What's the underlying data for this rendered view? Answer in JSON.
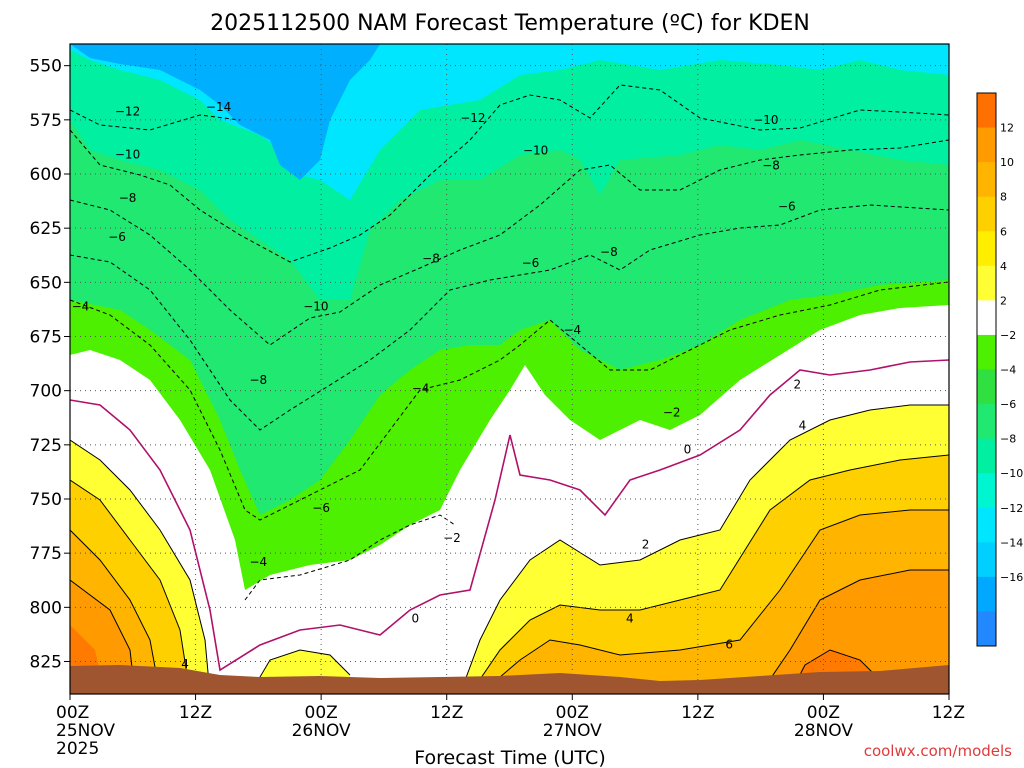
{
  "chart_data": {
    "type": "contour",
    "title": "2025112500 NAM Forecast Temperature (ºC) for KDEN",
    "xlabel": "Forecast Time (UTC)",
    "ylabel": "",
    "credit": "coolwx.com/models",
    "x_ticks": [
      {
        "hour": 0,
        "lines": [
          "00Z",
          "25NOV",
          "2025"
        ]
      },
      {
        "hour": 12,
        "lines": [
          "12Z"
        ]
      },
      {
        "hour": 24,
        "lines": [
          "00Z",
          "26NOV"
        ]
      },
      {
        "hour": 36,
        "lines": [
          "12Z"
        ]
      },
      {
        "hour": 48,
        "lines": [
          "00Z",
          "27NOV"
        ]
      },
      {
        "hour": 60,
        "lines": [
          "12Z"
        ]
      },
      {
        "hour": 72,
        "lines": [
          "00Z",
          "28NOV"
        ]
      },
      {
        "hour": 84,
        "lines": [
          "12Z"
        ]
      }
    ],
    "xlim_hours": [
      0,
      84
    ],
    "y_ticks": [
      "550",
      "575",
      "600",
      "625",
      "650",
      "675",
      "700",
      "725",
      "750",
      "775",
      "800",
      "825"
    ],
    "ylim_hpa": [
      540,
      840
    ],
    "colorbar": {
      "ticks": [
        "12",
        "10",
        "8",
        "6",
        "4",
        "2",
        "−2",
        "−4",
        "−6",
        "−8",
        "−10",
        "−12",
        "−14",
        "−16"
      ],
      "colors": [
        "#ff7000",
        "#ff9a00",
        "#ffb400",
        "#ffd000",
        "#ffee00",
        "#ffff33",
        "#ffffff",
        "#4df000",
        "#2fe040",
        "#20e870",
        "#00efa0",
        "#00f6d0",
        "#00e6ff",
        "#00cfff",
        "#00a8ff",
        "#2288ff"
      ]
    },
    "contour_labels": [
      {
        "text": "−14",
        "hour": 14.2,
        "hpa": 570
      },
      {
        "text": "−12",
        "hour": 5.5,
        "hpa": 572
      },
      {
        "text": "−12",
        "hour": 38.5,
        "hpa": 575
      },
      {
        "text": "−10",
        "hour": 5.5,
        "hpa": 592
      },
      {
        "text": "−10",
        "hour": 44.5,
        "hpa": 590
      },
      {
        "text": "−10",
        "hour": 66.5,
        "hpa": 576
      },
      {
        "text": "−10",
        "hour": 23.5,
        "hpa": 662
      },
      {
        "text": "−8",
        "hour": 5.5,
        "hpa": 612
      },
      {
        "text": "−8",
        "hour": 34.5,
        "hpa": 640
      },
      {
        "text": "−8",
        "hour": 51.5,
        "hpa": 637
      },
      {
        "text": "−8",
        "hour": 67.0,
        "hpa": 597
      },
      {
        "text": "−8",
        "hour": 18.0,
        "hpa": 696
      },
      {
        "text": "−6",
        "hour": 4.5,
        "hpa": 630
      },
      {
        "text": "−6",
        "hour": 44.0,
        "hpa": 642
      },
      {
        "text": "−6",
        "hour": 68.5,
        "hpa": 616
      },
      {
        "text": "−6",
        "hour": 24.0,
        "hpa": 755
      },
      {
        "text": "−4",
        "hour": 1.0,
        "hpa": 662
      },
      {
        "text": "−4",
        "hour": 48.0,
        "hpa": 673
      },
      {
        "text": "−4",
        "hour": 33.5,
        "hpa": 700
      },
      {
        "text": "−4",
        "hour": 18.0,
        "hpa": 780
      },
      {
        "text": "−2",
        "hour": 36.5,
        "hpa": 769
      },
      {
        "text": "−2",
        "hour": 57.5,
        "hpa": 711
      },
      {
        "text": "0",
        "hour": 59.0,
        "hpa": 728
      },
      {
        "text": "0",
        "hour": 33.0,
        "hpa": 806
      },
      {
        "text": "2",
        "hour": 69.5,
        "hpa": 698
      },
      {
        "text": "2",
        "hour": 55.0,
        "hpa": 772
      },
      {
        "text": "4",
        "hour": 70.0,
        "hpa": 717
      },
      {
        "text": "4",
        "hour": 53.5,
        "hpa": 806
      },
      {
        "text": "4",
        "hour": 11.0,
        "hpa": 827
      },
      {
        "text": "6",
        "hour": 63.0,
        "hpa": 818
      }
    ]
  }
}
